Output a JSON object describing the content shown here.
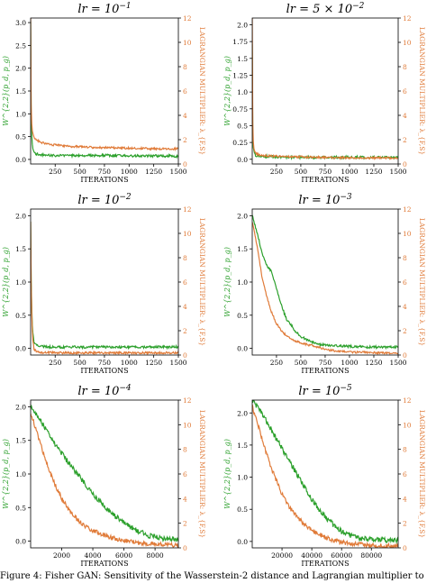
{
  "colors": {
    "w22": "#2ca02c",
    "lagrangian": "#e07b39",
    "axis": "#000000"
  },
  "axis_labels": {
    "ylabel_left": "W^{2,2}(p_d, p_g)",
    "ylabel_right": "LAGRANGIAN MULTIPLIER: λ_{F,S}",
    "xlabel": "ITERATIONS"
  },
  "caption": "Figure 4: Fisher GAN: Sensitivity of the Wasserstein-2 distance and Lagrangian multiplier to learning rate",
  "chart_data": [
    {
      "type": "line",
      "title": "lr = 10^{-1}",
      "title_base": "lr = 10",
      "title_exp": "−1",
      "xlim": [
        1,
        1500
      ],
      "ylim": [
        -0.1,
        3.1
      ],
      "y2lim": [
        0,
        12
      ],
      "xticks": [
        250,
        500,
        750,
        1000,
        1250,
        1500
      ],
      "yticks": [
        0.0,
        0.5,
        1.0,
        1.5,
        2.0,
        2.5,
        3.0
      ],
      "y2ticks": [
        0,
        2,
        4,
        6,
        8,
        10,
        12
      ],
      "series": [
        {
          "name": "W22",
          "axis": "left",
          "x": [
            1,
            5,
            10,
            20,
            35,
            60,
            100,
            200,
            400,
            700,
            1000,
            1300,
            1500
          ],
          "y": [
            3.05,
            1.3,
            0.6,
            0.3,
            0.15,
            0.12,
            0.1,
            0.09,
            0.08,
            0.09,
            0.08,
            0.08,
            0.07
          ]
        },
        {
          "name": "lambda",
          "axis": "right",
          "x": [
            1,
            5,
            10,
            20,
            35,
            60,
            100,
            200,
            400,
            700,
            1000,
            1300,
            1500
          ],
          "y": [
            12,
            5.5,
            3.5,
            2.6,
            2.2,
            2.0,
            1.8,
            1.6,
            1.45,
            1.35,
            1.3,
            1.25,
            1.25
          ]
        }
      ]
    },
    {
      "type": "line",
      "title": "lr = 5 × 10^{-2}",
      "title_base": "lr = 5 × 10",
      "title_exp": "−2",
      "xlim": [
        1,
        1500
      ],
      "ylim": [
        -0.07,
        2.1
      ],
      "y2lim": [
        0,
        12
      ],
      "xticks": [
        250,
        500,
        750,
        1000,
        1250,
        1500
      ],
      "yticks": [
        0.0,
        0.25,
        0.5,
        0.75,
        1.0,
        1.25,
        1.5,
        1.75,
        2.0
      ],
      "y2ticks": [
        0,
        2,
        4,
        6,
        8,
        10,
        12
      ],
      "series": [
        {
          "name": "W22",
          "axis": "left",
          "x": [
            1,
            5,
            10,
            20,
            35,
            60,
            100,
            200,
            400,
            700,
            1000,
            1300,
            1500
          ],
          "y": [
            1.7,
            0.5,
            0.2,
            0.1,
            0.06,
            0.05,
            0.04,
            0.04,
            0.03,
            0.03,
            0.03,
            0.03,
            0.03
          ]
        },
        {
          "name": "lambda",
          "axis": "right",
          "x": [
            1,
            5,
            10,
            20,
            35,
            60,
            100,
            200,
            400,
            700,
            1000,
            1300,
            1500
          ],
          "y": [
            12,
            4.0,
            2.0,
            1.2,
            0.9,
            0.8,
            0.7,
            0.65,
            0.6,
            0.55,
            0.5,
            0.5,
            0.5
          ]
        }
      ]
    },
    {
      "type": "line",
      "title": "lr = 10^{-2}",
      "title_base": "lr = 10",
      "title_exp": "−2",
      "xlim": [
        1,
        1500
      ],
      "ylim": [
        -0.1,
        2.1
      ],
      "y2lim": [
        0,
        12
      ],
      "xticks": [
        250,
        500,
        750,
        1000,
        1250,
        1500
      ],
      "yticks": [
        0.0,
        0.5,
        1.0,
        1.5,
        2.0
      ],
      "y2ticks": [
        0,
        2,
        4,
        6,
        8,
        10,
        12
      ],
      "series": [
        {
          "name": "W22",
          "axis": "left",
          "x": [
            1,
            5,
            10,
            20,
            35,
            60,
            100,
            200,
            400,
            700,
            1000,
            1300,
            1500
          ],
          "y": [
            1.9,
            1.2,
            0.7,
            0.3,
            0.1,
            0.05,
            0.03,
            0.02,
            0.02,
            0.02,
            0.02,
            0.02,
            0.02
          ]
        },
        {
          "name": "lambda",
          "axis": "right",
          "x": [
            1,
            5,
            10,
            20,
            35,
            60,
            100,
            200,
            400,
            700,
            1000,
            1300,
            1500
          ],
          "y": [
            11,
            7.0,
            4.0,
            1.5,
            0.5,
            0.25,
            0.2,
            0.2,
            0.18,
            0.18,
            0.18,
            0.18,
            0.18
          ]
        }
      ]
    },
    {
      "type": "line",
      "title": "lr = 10^{-3}",
      "title_base": "lr = 10",
      "title_exp": "−3",
      "xlim": [
        1,
        1500
      ],
      "ylim": [
        -0.1,
        2.1
      ],
      "y2lim": [
        0,
        12
      ],
      "xticks": [
        250,
        500,
        750,
        1000,
        1250,
        1500
      ],
      "yticks": [
        0.0,
        0.5,
        1.0,
        1.5,
        2.0
      ],
      "y2ticks": [
        0,
        2,
        4,
        6,
        8,
        10,
        12
      ],
      "series": [
        {
          "name": "W22",
          "axis": "left",
          "x": [
            1,
            50,
            100,
            150,
            200,
            250,
            300,
            350,
            400,
            450,
            500,
            600,
            700,
            800,
            1000,
            1200,
            1500
          ],
          "y": [
            2.0,
            1.75,
            1.45,
            1.25,
            1.15,
            0.9,
            0.65,
            0.45,
            0.35,
            0.25,
            0.18,
            0.1,
            0.06,
            0.04,
            0.03,
            0.02,
            0.02
          ]
        },
        {
          "name": "lambda",
          "axis": "right",
          "x": [
            1,
            50,
            100,
            150,
            200,
            250,
            300,
            350,
            400,
            500,
            600,
            700,
            800,
            1000,
            1200,
            1500
          ],
          "y": [
            11,
            9.0,
            6.5,
            4.8,
            3.5,
            2.6,
            2.0,
            1.6,
            1.3,
            1.0,
            0.8,
            0.6,
            0.4,
            0.25,
            0.2,
            0.15
          ]
        }
      ]
    },
    {
      "type": "line",
      "title": "lr = 10^{-4}",
      "title_base": "lr = 10",
      "title_exp": "−4",
      "xlim": [
        1,
        9500
      ],
      "ylim": [
        -0.1,
        2.1
      ],
      "y2lim": [
        0,
        12
      ],
      "xticks": [
        2000,
        4000,
        6000,
        8000
      ],
      "yticks": [
        0.0,
        0.5,
        1.0,
        1.5,
        2.0
      ],
      "y2ticks": [
        0,
        2,
        4,
        6,
        8,
        10,
        12
      ],
      "series": [
        {
          "name": "W22",
          "axis": "left",
          "x": [
            1,
            500,
            1000,
            1500,
            2000,
            2500,
            3000,
            3500,
            4000,
            4500,
            5000,
            5500,
            6000,
            6500,
            7000,
            7500,
            8000,
            8500,
            9000,
            9500
          ],
          "y": [
            2.0,
            1.85,
            1.65,
            1.45,
            1.3,
            1.15,
            1.0,
            0.85,
            0.7,
            0.58,
            0.46,
            0.36,
            0.28,
            0.2,
            0.14,
            0.09,
            0.06,
            0.04,
            0.03,
            0.03
          ]
        },
        {
          "name": "lambda",
          "axis": "right",
          "x": [
            1,
            500,
            1000,
            1500,
            2000,
            2500,
            3000,
            3500,
            4000,
            5000,
            6000,
            7000,
            8000,
            9000,
            9500
          ],
          "y": [
            11,
            9.0,
            7.0,
            5.3,
            4.0,
            3.0,
            2.3,
            1.8,
            1.4,
            0.9,
            0.6,
            0.4,
            0.3,
            0.22,
            0.2
          ]
        }
      ]
    },
    {
      "type": "line",
      "title": "lr = 10^{-5}",
      "title_base": "lr = 10",
      "title_exp": "−5",
      "xlim": [
        1,
        98000
      ],
      "ylim": [
        -0.1,
        2.2
      ],
      "y2lim": [
        0,
        12
      ],
      "xticks": [
        20000,
        40000,
        60000,
        80000
      ],
      "yticks": [
        0.0,
        0.5,
        1.0,
        1.5,
        2.0
      ],
      "y2ticks": [
        0,
        2,
        4,
        6,
        8,
        10,
        12
      ],
      "series": [
        {
          "name": "W22",
          "axis": "left",
          "x": [
            1,
            5000,
            10000,
            15000,
            20000,
            25000,
            30000,
            35000,
            40000,
            45000,
            50000,
            55000,
            60000,
            65000,
            70000,
            80000,
            90000,
            98000
          ],
          "y": [
            2.2,
            2.05,
            1.85,
            1.65,
            1.45,
            1.25,
            1.05,
            0.85,
            0.65,
            0.5,
            0.36,
            0.25,
            0.16,
            0.1,
            0.06,
            0.03,
            0.02,
            0.02
          ]
        },
        {
          "name": "lambda",
          "axis": "right",
          "x": [
            1,
            5000,
            10000,
            15000,
            20000,
            25000,
            30000,
            35000,
            40000,
            50000,
            60000,
            70000,
            80000,
            90000,
            98000
          ],
          "y": [
            11.5,
            9.5,
            7.5,
            5.8,
            4.4,
            3.3,
            2.5,
            1.9,
            1.4,
            0.8,
            0.45,
            0.3,
            0.2,
            0.15,
            0.15
          ]
        }
      ]
    }
  ]
}
